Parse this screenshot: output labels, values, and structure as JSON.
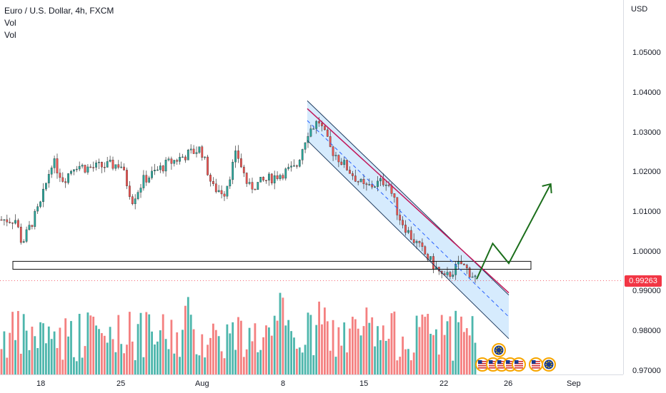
{
  "legend": {
    "symbol_title": "Euro / U.S. Dollar, 4h, FXCM",
    "line2": "Vol",
    "line3": "Vol"
  },
  "price_scale": {
    "currency": "USD",
    "ticks": [
      "1.05000",
      "1.04000",
      "1.03000",
      "1.02000",
      "1.01000",
      "1.00000",
      "0.99000",
      "0.98000",
      "0.97000"
    ],
    "last_price": "0.99263"
  },
  "time_scale": {
    "ticks": [
      "18",
      "25",
      "Aug",
      "8",
      "15",
      "22",
      "26",
      "Sep"
    ]
  },
  "colors": {
    "up": "#26a69a",
    "down": "#ef5350",
    "volume_up": "#4db6ac",
    "volume_down": "#f48080",
    "channel_fill": "#bbdefb",
    "resistance_line": "#c2185b",
    "projection_arrow": "#1b6e1b",
    "last_price": "#f23645"
  },
  "event_icons": [
    "us-flag-icon",
    "us-flag-icon",
    "us-flag-icon",
    "us-flag-icon",
    "eu-flag-icon",
    "us-flag-icon",
    "us-flag-icon",
    "eu-flag-icon"
  ],
  "chart_data": {
    "type": "candlestick",
    "instrument": "Euro / U.S. Dollar",
    "timeframe": "4h",
    "source": "FXCM",
    "ylim": [
      0.968,
      1.056
    ],
    "x_ticks": [
      "18",
      "25",
      "Aug",
      "8",
      "15",
      "22",
      "26",
      "Sep"
    ],
    "close_path": [
      {
        "t": "Jul 14",
        "close": 1.008
      },
      {
        "t": "Jul 15",
        "close": 1.002
      },
      {
        "t": "Jul 18",
        "close": 1.012
      },
      {
        "t": "Jul 19",
        "close": 1.023
      },
      {
        "t": "Jul 20",
        "close": 1.018
      },
      {
        "t": "Jul 21",
        "close": 1.022
      },
      {
        "t": "Jul 22",
        "close": 1.021
      },
      {
        "t": "Jul 25",
        "close": 1.022
      },
      {
        "t": "Jul 26",
        "close": 1.013
      },
      {
        "t": "Jul 27",
        "close": 1.018
      },
      {
        "t": "Jul 28",
        "close": 1.02
      },
      {
        "t": "Jul 29",
        "close": 1.022
      },
      {
        "t": "Aug 1",
        "close": 1.026
      },
      {
        "t": "Aug 2",
        "close": 1.016
      },
      {
        "t": "Aug 3",
        "close": 1.015
      },
      {
        "t": "Aug 4",
        "close": 1.025
      },
      {
        "t": "Aug 5",
        "close": 1.016
      },
      {
        "t": "Aug 8",
        "close": 1.02
      },
      {
        "t": "Aug 9",
        "close": 1.021
      },
      {
        "t": "Aug 10",
        "close": 1.03
      },
      {
        "t": "Aug 11",
        "close": 1.033
      },
      {
        "t": "Aug 12",
        "close": 1.026
      },
      {
        "t": "Aug 15",
        "close": 1.016
      },
      {
        "t": "Aug 16",
        "close": 1.017
      },
      {
        "t": "Aug 17",
        "close": 1.018
      },
      {
        "t": "Aug 18",
        "close": 1.009
      },
      {
        "t": "Aug 19",
        "close": 1.004
      },
      {
        "t": "Aug 22",
        "close": 0.993
      },
      {
        "t": "Aug 23",
        "close": 0.997
      },
      {
        "t": "Aug 24",
        "close": 0.993
      }
    ],
    "support_zone": [
      0.9955,
      0.9975
    ],
    "last_price": 0.99263,
    "annotations": [
      {
        "kind": "descending-channel",
        "upper_start": [
          "Aug 10",
          1.038
        ],
        "upper_end": [
          "Aug 26",
          0.989
        ],
        "lower_start": [
          "Aug 10",
          1.028
        ],
        "lower_end": [
          "Aug 26",
          0.978
        ]
      },
      {
        "kind": "resistance-trendline",
        "from": [
          "Aug 10",
          1.036
        ],
        "to": [
          "Aug 26",
          0.991
        ]
      },
      {
        "kind": "projection-arrow",
        "points": [
          [
            "Aug 24",
            0.993
          ],
          [
            "Aug 25",
            1.002
          ],
          [
            "Aug 26",
            0.997
          ],
          [
            "Aug 30",
            1.017
          ]
        ]
      }
    ]
  }
}
